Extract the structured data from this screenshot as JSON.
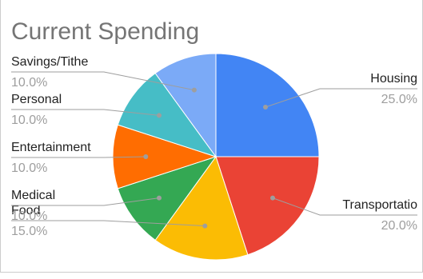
{
  "chart_data": {
    "type": "pie",
    "title": "Current Spending",
    "slices": [
      {
        "label": "Housing",
        "value": 25.0,
        "percent_label": "25.0%",
        "color": "#4285f4"
      },
      {
        "label": "Transportatio",
        "value": 20.0,
        "percent_label": "20.0%",
        "color": "#ea4335"
      },
      {
        "label": "Food",
        "value": 15.0,
        "percent_label": "15.0%",
        "color": "#fbbc04"
      },
      {
        "label": "Medical",
        "value": 10.0,
        "percent_label": "10.0%",
        "color": "#34a853"
      },
      {
        "label": "Entertainment",
        "value": 10.0,
        "percent_label": "10.0%",
        "color": "#ff6d01"
      },
      {
        "label": "Personal",
        "value": 10.0,
        "percent_label": "10.0%",
        "color": "#46bdc6"
      },
      {
        "label": "Savings/Tithe",
        "value": 10.0,
        "percent_label": "10.0%",
        "color": "#7baaf7"
      }
    ],
    "start_angle_deg": 0,
    "direction": "clockwise",
    "legend": "none",
    "label_style": "leader-lines"
  },
  "colors": {
    "title_text": "#757575",
    "label_text": "#222222",
    "percent_text": "#9e9e9e",
    "leader_line": "#9e9e9e",
    "border": "#cccccc"
  }
}
